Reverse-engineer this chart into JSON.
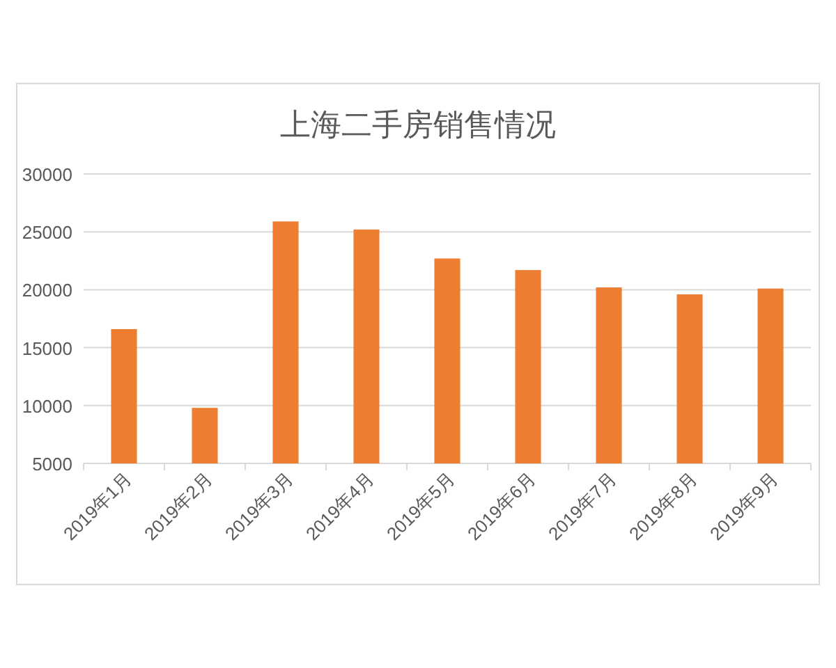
{
  "chart_data": {
    "type": "bar",
    "title": "上海二手房销售情况",
    "categories": [
      "2019年1月",
      "2019年2月",
      "2019年3月",
      "2019年4月",
      "2019年5月",
      "2019年6月",
      "2019年7月",
      "2019年8月",
      "2019年9月"
    ],
    "values": [
      16600,
      9800,
      25900,
      25200,
      22700,
      21700,
      20200,
      19600,
      20100
    ],
    "color": "#ed7d31",
    "ylim": [
      5000,
      30000
    ],
    "yticks": [
      5000,
      10000,
      15000,
      20000,
      25000,
      30000
    ],
    "grid": "y"
  }
}
